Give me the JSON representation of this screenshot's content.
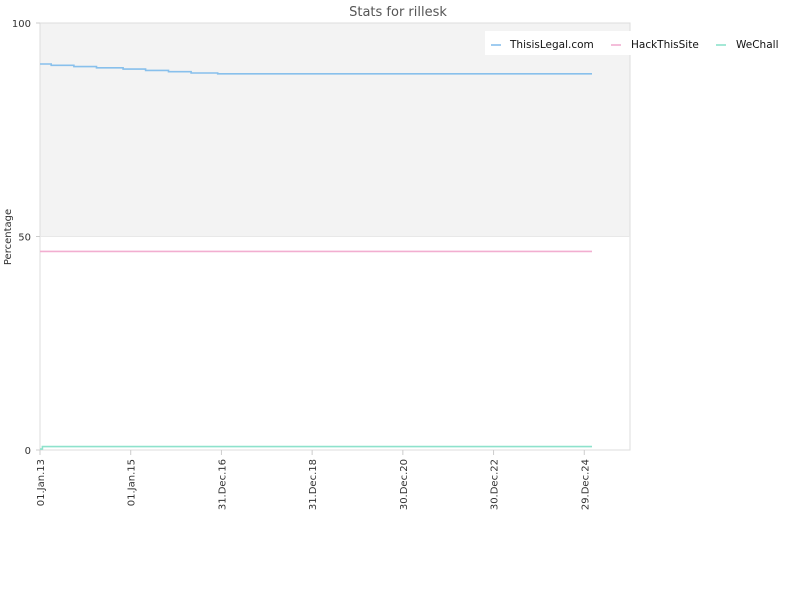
{
  "chart_data": {
    "type": "line",
    "title": "Stats for rillesk",
    "ylabel": "Percentage",
    "xlabel": "",
    "ylim": [
      0,
      100
    ],
    "xlim": [
      "2013-01-01",
      "2026-01-01"
    ],
    "y_ticks": [
      0,
      50,
      100
    ],
    "x_tick_labels": [
      {
        "date": "2013-01-01",
        "label": "01.Jan.13"
      },
      {
        "date": "2015-01-01",
        "label": "01.Jan.15"
      },
      {
        "date": "2016-12-31",
        "label": "31.Dec.16"
      },
      {
        "date": "2018-12-31",
        "label": "31.Dec.18"
      },
      {
        "date": "2020-12-30",
        "label": "30.Dec.20"
      },
      {
        "date": "2022-12-30",
        "label": "30.Dec.22"
      },
      {
        "date": "2024-12-29",
        "label": "29.Dec.24"
      }
    ],
    "bands": [
      {
        "from": 50,
        "to": 100,
        "color": "#f3f3f3"
      }
    ],
    "grid": false,
    "legend_position": "top-right",
    "series": [
      {
        "name": "ThisisLegal.com",
        "color": "#88c0ec",
        "step": true,
        "points": [
          {
            "x": "2013-01-01",
            "y": 90.4
          },
          {
            "x": "2013-04-01",
            "y": 90.1
          },
          {
            "x": "2013-10-01",
            "y": 89.8
          },
          {
            "x": "2014-04-01",
            "y": 89.5
          },
          {
            "x": "2014-11-01",
            "y": 89.2
          },
          {
            "x": "2015-05-01",
            "y": 88.9
          },
          {
            "x": "2015-11-01",
            "y": 88.6
          },
          {
            "x": "2016-05-01",
            "y": 88.3
          },
          {
            "x": "2016-12-01",
            "y": 88.1
          },
          {
            "x": "2025-03-01",
            "y": 88.1
          }
        ]
      },
      {
        "name": "HackThisSite",
        "color": "#f2aed0",
        "step": true,
        "points": [
          {
            "x": "2013-01-01",
            "y": 46.5
          },
          {
            "x": "2025-03-01",
            "y": 46.5
          }
        ]
      },
      {
        "name": "WeChall",
        "color": "#8ee2cc",
        "step": true,
        "points": [
          {
            "x": "2013-01-01",
            "y": 0.2
          },
          {
            "x": "2013-01-20",
            "y": 0.8
          },
          {
            "x": "2025-03-01",
            "y": 0.8
          }
        ]
      }
    ]
  }
}
